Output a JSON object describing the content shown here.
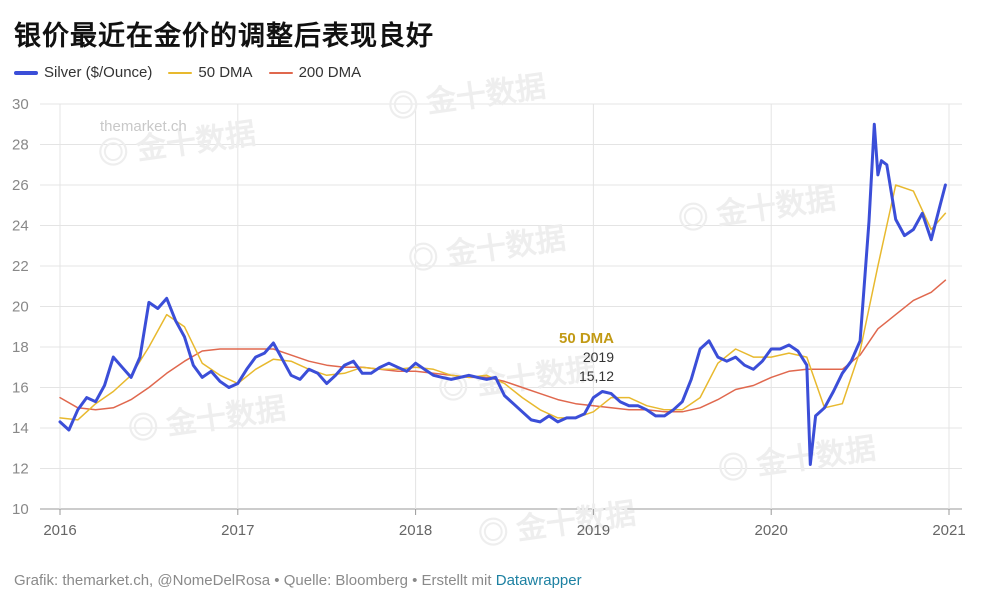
{
  "title": "银价最近在金价的调整后表现良好",
  "legend": [
    {
      "label": "Silver ($/Ounce)",
      "color": "#3b4ed8"
    },
    {
      "label": "50 DMA",
      "color": "#e8b92e"
    },
    {
      "label": "200 DMA",
      "color": "#e0684e"
    }
  ],
  "watermarks": {
    "site": "themarket.ch",
    "brand": "金十数据"
  },
  "footer": {
    "prefix": "Grafik: themarket.ch, @NomeDelRosa • Quelle: Bloomberg • Erstellt mit ",
    "link": "Datawrapper"
  },
  "chart_data": {
    "type": "line",
    "title": "银价最近在金价的调整后表现良好",
    "xlabel": "",
    "ylabel": "",
    "ylim": [
      10,
      30
    ],
    "yticks": [
      10,
      12,
      14,
      16,
      18,
      20,
      22,
      24,
      26,
      28,
      30
    ],
    "xlim": [
      2016,
      2021
    ],
    "xticks": [
      {
        "value": 2016,
        "label": "2016"
      },
      {
        "value": 2017,
        "label": "2017"
      },
      {
        "value": 2018,
        "label": "2018"
      },
      {
        "value": 2019,
        "label": "2019"
      },
      {
        "value": 2020,
        "label": "2020"
      },
      {
        "value": 2021,
        "label": "2021"
      }
    ],
    "grid": true,
    "series": [
      {
        "name": "Silver ($/Ounce)",
        "color": "#3b4ed8",
        "x": [
          2016.0,
          2016.05,
          2016.1,
          2016.15,
          2016.2,
          2016.25,
          2016.3,
          2016.35,
          2016.4,
          2016.45,
          2016.5,
          2016.55,
          2016.6,
          2016.65,
          2016.7,
          2016.75,
          2016.8,
          2016.85,
          2016.9,
          2016.95,
          2017.0,
          2017.05,
          2017.1,
          2017.15,
          2017.2,
          2017.25,
          2017.3,
          2017.35,
          2017.4,
          2017.45,
          2017.5,
          2017.55,
          2017.6,
          2017.65,
          2017.7,
          2017.75,
          2017.8,
          2017.85,
          2017.9,
          2017.95,
          2018.0,
          2018.05,
          2018.1,
          2018.15,
          2018.2,
          2018.25,
          2018.3,
          2018.35,
          2018.4,
          2018.45,
          2018.5,
          2018.55,
          2018.6,
          2018.65,
          2018.7,
          2018.75,
          2018.8,
          2018.85,
          2018.9,
          2018.95,
          2019.0,
          2019.05,
          2019.1,
          2019.15,
          2019.2,
          2019.25,
          2019.3,
          2019.35,
          2019.4,
          2019.45,
          2019.5,
          2019.55,
          2019.6,
          2019.65,
          2019.7,
          2019.75,
          2019.8,
          2019.85,
          2019.9,
          2019.95,
          2020.0,
          2020.05,
          2020.1,
          2020.15,
          2020.2,
          2020.22,
          2020.25,
          2020.3,
          2020.35,
          2020.4,
          2020.45,
          2020.5,
          2020.55,
          2020.58,
          2020.6,
          2020.62,
          2020.65,
          2020.7,
          2020.75,
          2020.8,
          2020.85,
          2020.9,
          2020.95,
          2020.98
        ],
        "values": [
          14.3,
          13.9,
          14.9,
          15.5,
          15.3,
          16.1,
          17.5,
          17.0,
          16.5,
          17.5,
          20.2,
          19.9,
          20.4,
          19.3,
          18.5,
          17.1,
          16.5,
          16.8,
          16.3,
          16.0,
          16.2,
          16.9,
          17.5,
          17.7,
          18.2,
          17.4,
          16.6,
          16.4,
          16.9,
          16.7,
          16.2,
          16.6,
          17.1,
          17.3,
          16.7,
          16.7,
          17.0,
          17.2,
          17.0,
          16.8,
          17.2,
          16.9,
          16.6,
          16.5,
          16.4,
          16.5,
          16.6,
          16.5,
          16.4,
          16.5,
          15.6,
          15.2,
          14.8,
          14.4,
          14.3,
          14.6,
          14.3,
          14.5,
          14.5,
          14.7,
          15.5,
          15.8,
          15.7,
          15.3,
          15.1,
          15.1,
          14.9,
          14.6,
          14.6,
          14.9,
          15.3,
          16.4,
          17.9,
          18.3,
          17.5,
          17.3,
          17.5,
          17.1,
          16.9,
          17.3,
          17.9,
          17.9,
          18.1,
          17.8,
          17.1,
          12.2,
          14.6,
          15.0,
          15.8,
          16.7,
          17.3,
          18.3,
          24.2,
          29.0,
          26.5,
          27.2,
          27.0,
          24.3,
          23.5,
          23.8,
          24.6,
          23.3,
          25.0,
          26.0
        ]
      },
      {
        "name": "50 DMA",
        "color": "#e8b92e",
        "x": [
          2016.0,
          2016.1,
          2016.2,
          2016.3,
          2016.4,
          2016.5,
          2016.6,
          2016.7,
          2016.8,
          2016.9,
          2017.0,
          2017.1,
          2017.2,
          2017.3,
          2017.4,
          2017.5,
          2017.6,
          2017.7,
          2017.8,
          2017.9,
          2018.0,
          2018.1,
          2018.2,
          2018.3,
          2018.4,
          2018.5,
          2018.6,
          2018.7,
          2018.8,
          2018.9,
          2019.0,
          2019.1,
          2019.2,
          2019.3,
          2019.4,
          2019.5,
          2019.6,
          2019.7,
          2019.8,
          2019.9,
          2020.0,
          2020.1,
          2020.2,
          2020.3,
          2020.4,
          2020.5,
          2020.6,
          2020.7,
          2020.8,
          2020.9,
          2020.98
        ],
        "values": [
          14.5,
          14.4,
          15.2,
          15.8,
          16.6,
          18.0,
          19.6,
          19.0,
          17.2,
          16.6,
          16.2,
          16.9,
          17.4,
          17.3,
          16.9,
          16.6,
          16.7,
          17.0,
          16.9,
          16.9,
          17.0,
          16.9,
          16.6,
          16.5,
          16.6,
          16.2,
          15.5,
          14.9,
          14.5,
          14.5,
          14.8,
          15.5,
          15.5,
          15.1,
          14.9,
          14.9,
          15.5,
          17.2,
          17.9,
          17.5,
          17.5,
          17.7,
          17.5,
          15.0,
          15.2,
          17.8,
          22.0,
          26.0,
          25.7,
          23.8,
          24.6
        ]
      },
      {
        "name": "200 DMA",
        "color": "#e0684e",
        "x": [
          2016.0,
          2016.1,
          2016.2,
          2016.3,
          2016.4,
          2016.5,
          2016.6,
          2016.7,
          2016.8,
          2016.9,
          2017.0,
          2017.1,
          2017.2,
          2017.3,
          2017.4,
          2017.5,
          2017.6,
          2017.7,
          2017.8,
          2017.9,
          2018.0,
          2018.1,
          2018.2,
          2018.3,
          2018.4,
          2018.5,
          2018.6,
          2018.7,
          2018.8,
          2018.9,
          2019.0,
          2019.1,
          2019.2,
          2019.3,
          2019.4,
          2019.5,
          2019.6,
          2019.7,
          2019.8,
          2019.9,
          2020.0,
          2020.1,
          2020.2,
          2020.3,
          2020.4,
          2020.5,
          2020.6,
          2020.7,
          2020.8,
          2020.9,
          2020.98
        ],
        "values": [
          15.5,
          15.0,
          14.9,
          15.0,
          15.4,
          16.0,
          16.7,
          17.3,
          17.8,
          17.9,
          17.9,
          17.9,
          17.9,
          17.6,
          17.3,
          17.1,
          17.0,
          17.0,
          16.9,
          16.8,
          16.8,
          16.7,
          16.6,
          16.5,
          16.5,
          16.3,
          16.0,
          15.7,
          15.4,
          15.2,
          15.1,
          15.0,
          14.9,
          14.9,
          14.8,
          14.8,
          15.0,
          15.4,
          15.9,
          16.1,
          16.5,
          16.8,
          16.9,
          16.9,
          16.9,
          17.6,
          18.9,
          19.6,
          20.3,
          20.7,
          21.3
        ]
      }
    ],
    "annotations": [
      {
        "text": "50 DMA",
        "color": "#c29a15"
      },
      {
        "text": "2019",
        "color": "#333333"
      },
      {
        "text": "15,12",
        "color": "#333333"
      }
    ]
  }
}
